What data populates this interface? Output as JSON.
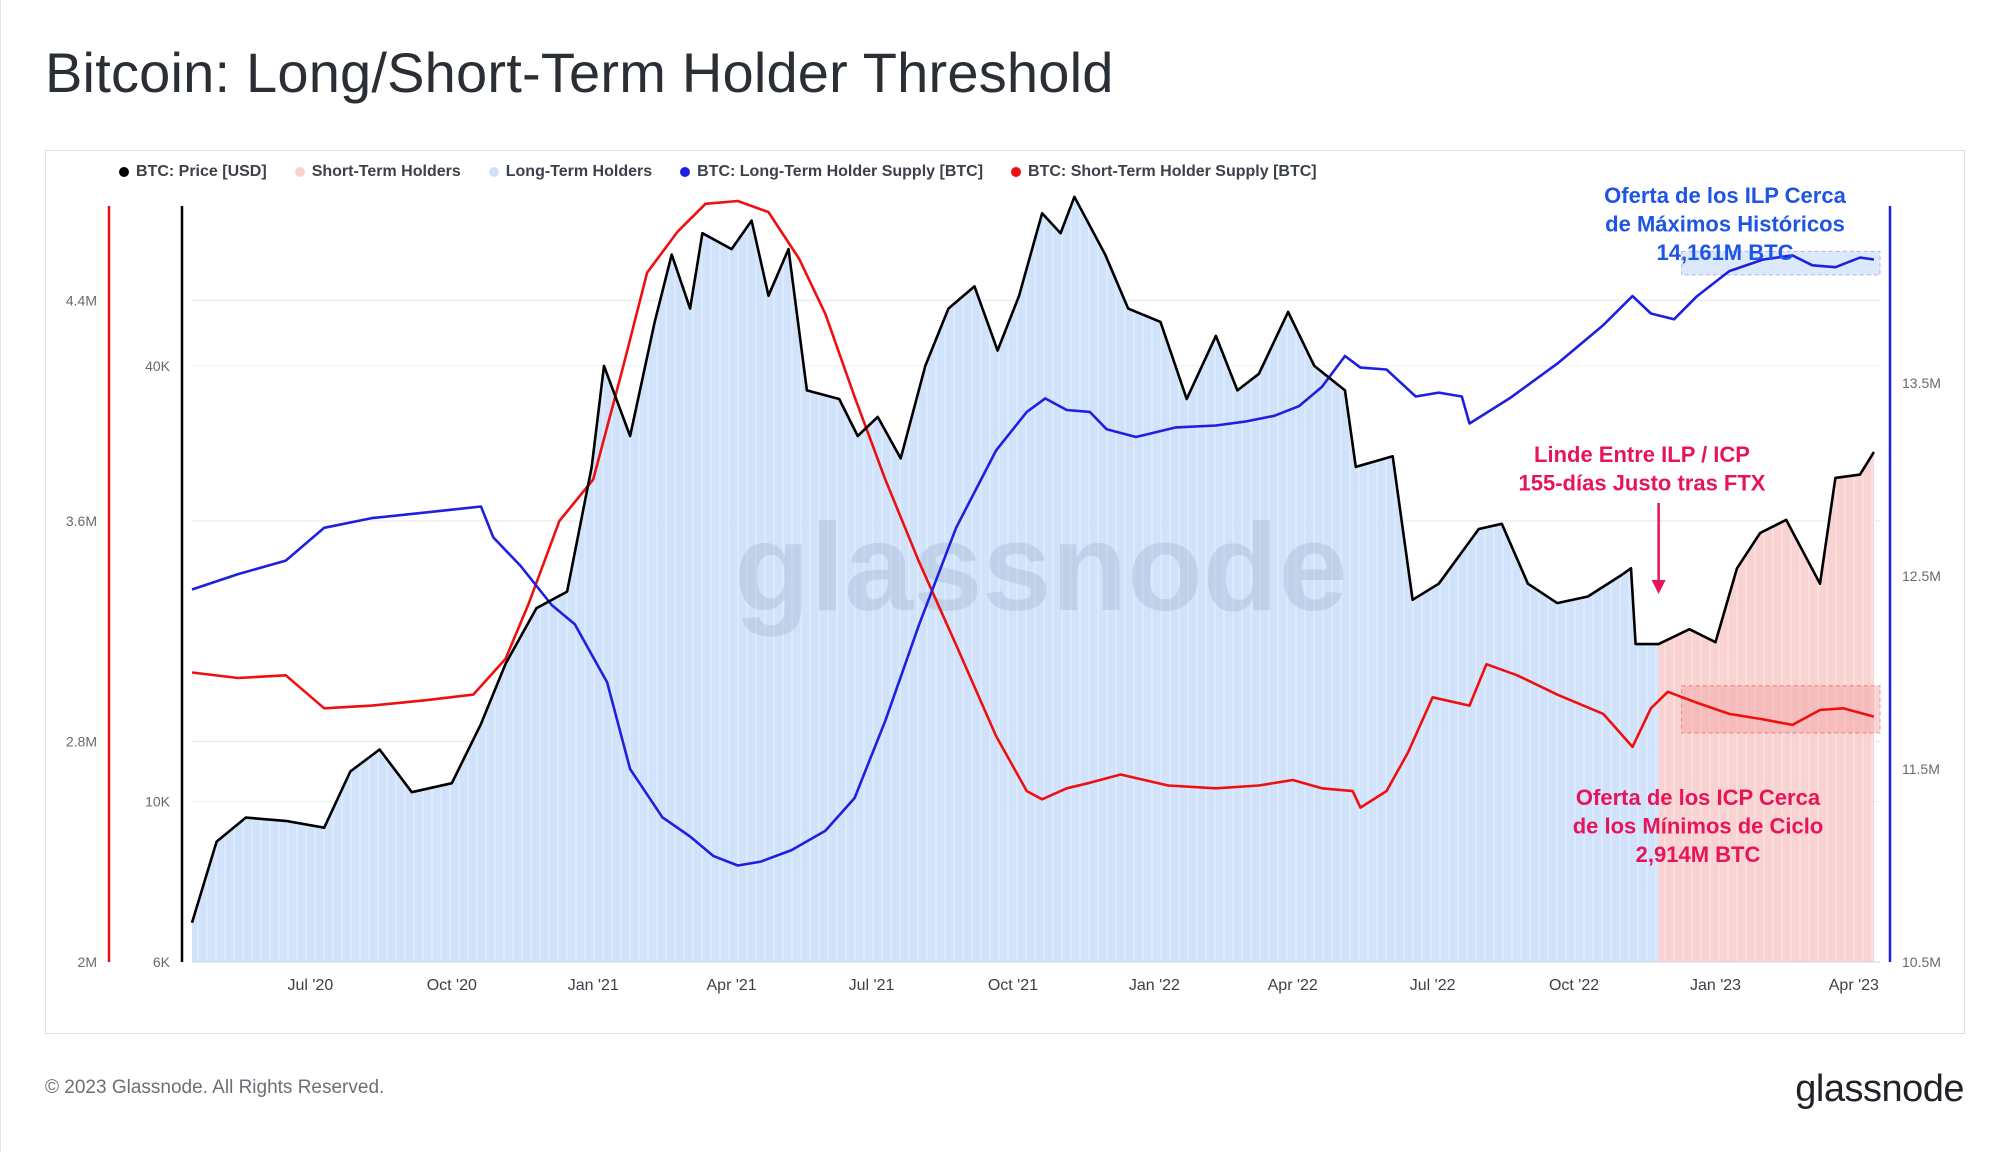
{
  "title": "Bitcoin: Long/Short-Term Holder Threshold",
  "footer": "© 2023 Glassnode. All Rights Reserved.",
  "logo": "glassnode",
  "watermark": "glassnode",
  "colors": {
    "price": "#000000",
    "sth_area": "#f9d0d0",
    "lth_area": "#cfe2fb",
    "lth_supply": "#1f1fe0",
    "sth_supply": "#ee1010",
    "annotation_blue": "#1e55e8",
    "annotation_pink": "#e8145a"
  },
  "legend": [
    {
      "label": "BTC: Price [USD]",
      "color": "#000000"
    },
    {
      "label": "Short-Term Holders",
      "color": "#f9d0d0"
    },
    {
      "label": "Long-Term Holders",
      "color": "#cfe2fb"
    },
    {
      "label": "BTC: Long-Term Holder Supply [BTC]",
      "color": "#1f1fe0"
    },
    {
      "label": "BTC: Short-Term Holder Supply [BTC]",
      "color": "#ee1010"
    }
  ],
  "chart_data": {
    "type": "line",
    "x_ticks": [
      "Jul '20",
      "Oct '20",
      "Jan '21",
      "Apr '21",
      "Jul '21",
      "Oct '21",
      "Jan '22",
      "Apr '22",
      "Jul '22",
      "Oct '22",
      "Jan '23",
      "Apr '23"
    ],
    "y_axes": {
      "sth_supply_left": {
        "ticks": [
          "4.4M",
          "3.6M",
          "2.8M",
          "2M"
        ],
        "range": [
          2000000,
          4800000
        ]
      },
      "price_left": {
        "ticks": [
          "40K",
          "10K",
          "6K"
        ],
        "scale": "log",
        "range": [
          6000,
          70000
        ]
      },
      "lth_supply_right": {
        "ticks": [
          "13.5M",
          "12.5M",
          "11.5M",
          "10.5M"
        ],
        "range": [
          10500000,
          14500000
        ]
      }
    },
    "threshold_date": "2022-11-25",
    "series": [
      {
        "name": "BTC: Price [USD]",
        "axis": "price_left",
        "points": [
          [
            "2020-04-15",
            6800
          ],
          [
            "2020-05-01",
            8800
          ],
          [
            "2020-05-20",
            9500
          ],
          [
            "2020-06-15",
            9400
          ],
          [
            "2020-07-10",
            9200
          ],
          [
            "2020-07-27",
            11000
          ],
          [
            "2020-08-15",
            11800
          ],
          [
            "2020-09-05",
            10300
          ],
          [
            "2020-10-01",
            10600
          ],
          [
            "2020-10-20",
            12800
          ],
          [
            "2020-11-05",
            15500
          ],
          [
            "2020-11-25",
            18500
          ],
          [
            "2020-12-15",
            19500
          ],
          [
            "2020-12-31",
            29000
          ],
          [
            "2021-01-08",
            40000
          ],
          [
            "2021-01-25",
            32000
          ],
          [
            "2021-02-10",
            46000
          ],
          [
            "2021-02-21",
            57000
          ],
          [
            "2021-03-05",
            48000
          ],
          [
            "2021-03-13",
            61000
          ],
          [
            "2021-04-01",
            58000
          ],
          [
            "2021-04-14",
            63500
          ],
          [
            "2021-04-25",
            50000
          ],
          [
            "2021-05-08",
            58000
          ],
          [
            "2021-05-20",
            37000
          ],
          [
            "2021-06-10",
            36000
          ],
          [
            "2021-06-22",
            32000
          ],
          [
            "2021-07-05",
            34000
          ],
          [
            "2021-07-20",
            29800
          ],
          [
            "2021-08-05",
            40000
          ],
          [
            "2021-08-20",
            48000
          ],
          [
            "2021-09-06",
            51500
          ],
          [
            "2021-09-21",
            42000
          ],
          [
            "2021-10-05",
            50000
          ],
          [
            "2021-10-20",
            65000
          ],
          [
            "2021-11-01",
            61000
          ],
          [
            "2021-11-10",
            68500
          ],
          [
            "2021-11-30",
            57000
          ],
          [
            "2021-12-15",
            48000
          ],
          [
            "2022-01-05",
            46000
          ],
          [
            "2022-01-22",
            36000
          ],
          [
            "2022-02-10",
            44000
          ],
          [
            "2022-02-24",
            37000
          ],
          [
            "2022-03-10",
            39000
          ],
          [
            "2022-03-29",
            47500
          ],
          [
            "2022-04-15",
            40000
          ],
          [
            "2022-05-05",
            37000
          ],
          [
            "2022-05-12",
            29000
          ],
          [
            "2022-06-05",
            30000
          ],
          [
            "2022-06-18",
            19000
          ],
          [
            "2022-07-05",
            20000
          ],
          [
            "2022-07-31",
            23800
          ],
          [
            "2022-08-15",
            24200
          ],
          [
            "2022-09-01",
            20000
          ],
          [
            "2022-09-20",
            18800
          ],
          [
            "2022-10-10",
            19200
          ],
          [
            "2022-10-31",
            20500
          ],
          [
            "2022-11-07",
            21000
          ],
          [
            "2022-11-10",
            16500
          ],
          [
            "2022-11-25",
            16500
          ],
          [
            "2022-12-15",
            17300
          ],
          [
            "2023-01-01",
            16600
          ],
          [
            "2023-01-15",
            21000
          ],
          [
            "2023-01-30",
            23500
          ],
          [
            "2023-02-16",
            24500
          ],
          [
            "2023-03-10",
            20000
          ],
          [
            "2023-03-20",
            28000
          ],
          [
            "2023-04-05",
            28300
          ],
          [
            "2023-04-14",
            30400
          ]
        ]
      },
      {
        "name": "BTC: Long-Term Holder Supply [BTC]",
        "axis": "lth_supply_right",
        "points": [
          [
            "2020-04-15",
            12430000
          ],
          [
            "2020-05-15",
            12510000
          ],
          [
            "2020-06-15",
            12580000
          ],
          [
            "2020-07-10",
            12750000
          ],
          [
            "2020-08-10",
            12800000
          ],
          [
            "2020-09-15",
            12830000
          ],
          [
            "2020-10-20",
            12860000
          ],
          [
            "2020-10-28",
            12700000
          ],
          [
            "2020-11-15",
            12550000
          ],
          [
            "2020-12-05",
            12350000
          ],
          [
            "2020-12-20",
            12250000
          ],
          [
            "2021-01-10",
            11950000
          ],
          [
            "2021-01-25",
            11500000
          ],
          [
            "2021-02-15",
            11250000
          ],
          [
            "2021-03-05",
            11150000
          ],
          [
            "2021-03-20",
            11050000
          ],
          [
            "2021-04-05",
            11000000
          ],
          [
            "2021-04-20",
            11020000
          ],
          [
            "2021-05-10",
            11080000
          ],
          [
            "2021-06-01",
            11180000
          ],
          [
            "2021-06-20",
            11350000
          ],
          [
            "2021-07-10",
            11750000
          ],
          [
            "2021-08-01",
            12250000
          ],
          [
            "2021-08-25",
            12750000
          ],
          [
            "2021-09-20",
            13150000
          ],
          [
            "2021-10-10",
            13350000
          ],
          [
            "2021-10-22",
            13420000
          ],
          [
            "2021-11-05",
            13360000
          ],
          [
            "2021-11-20",
            13350000
          ],
          [
            "2021-12-01",
            13260000
          ],
          [
            "2021-12-20",
            13220000
          ],
          [
            "2022-01-15",
            13270000
          ],
          [
            "2022-02-10",
            13280000
          ],
          [
            "2022-03-01",
            13300000
          ],
          [
            "2022-03-20",
            13330000
          ],
          [
            "2022-04-05",
            13380000
          ],
          [
            "2022-04-20",
            13480000
          ],
          [
            "2022-05-05",
            13640000
          ],
          [
            "2022-05-15",
            13580000
          ],
          [
            "2022-06-01",
            13570000
          ],
          [
            "2022-06-20",
            13430000
          ],
          [
            "2022-07-05",
            13450000
          ],
          [
            "2022-07-20",
            13430000
          ],
          [
            "2022-07-25",
            13290000
          ],
          [
            "2022-08-20",
            13420000
          ],
          [
            "2022-09-20",
            13600000
          ],
          [
            "2022-10-20",
            13800000
          ],
          [
            "2022-11-08",
            13950000
          ],
          [
            "2022-11-20",
            13860000
          ],
          [
            "2022-12-05",
            13830000
          ],
          [
            "2022-12-20",
            13950000
          ],
          [
            "2023-01-10",
            14080000
          ],
          [
            "2023-02-01",
            14140000
          ],
          [
            "2023-02-20",
            14161000
          ],
          [
            "2023-03-05",
            14110000
          ],
          [
            "2023-03-20",
            14100000
          ],
          [
            "2023-04-05",
            14150000
          ],
          [
            "2023-04-14",
            14140000
          ]
        ]
      },
      {
        "name": "BTC: Short-Term Holder Supply [BTC]",
        "axis": "sth_supply_left",
        "points": [
          [
            "2020-04-15",
            3050000
          ],
          [
            "2020-05-15",
            3030000
          ],
          [
            "2020-06-15",
            3040000
          ],
          [
            "2020-07-10",
            2920000
          ],
          [
            "2020-08-10",
            2930000
          ],
          [
            "2020-09-15",
            2950000
          ],
          [
            "2020-10-15",
            2970000
          ],
          [
            "2020-11-05",
            3100000
          ],
          [
            "2020-11-20",
            3300000
          ],
          [
            "2020-12-10",
            3600000
          ],
          [
            "2021-01-01",
            3750000
          ],
          [
            "2021-01-20",
            4150000
          ],
          [
            "2021-02-05",
            4500000
          ],
          [
            "2021-02-25",
            4650000
          ],
          [
            "2021-03-15",
            4750000
          ],
          [
            "2021-04-05",
            4760000
          ],
          [
            "2021-04-25",
            4720000
          ],
          [
            "2021-05-15",
            4550000
          ],
          [
            "2021-06-01",
            4350000
          ],
          [
            "2021-06-20",
            4050000
          ],
          [
            "2021-07-10",
            3750000
          ],
          [
            "2021-08-01",
            3450000
          ],
          [
            "2021-08-25",
            3150000
          ],
          [
            "2021-09-20",
            2820000
          ],
          [
            "2021-10-10",
            2620000
          ],
          [
            "2021-10-20",
            2590000
          ],
          [
            "2021-11-05",
            2630000
          ],
          [
            "2021-11-20",
            2650000
          ],
          [
            "2021-12-10",
            2680000
          ],
          [
            "2022-01-10",
            2640000
          ],
          [
            "2022-02-10",
            2630000
          ],
          [
            "2022-03-10",
            2640000
          ],
          [
            "2022-04-01",
            2660000
          ],
          [
            "2022-04-20",
            2630000
          ],
          [
            "2022-05-10",
            2620000
          ],
          [
            "2022-05-15",
            2560000
          ],
          [
            "2022-06-01",
            2620000
          ],
          [
            "2022-06-15",
            2760000
          ],
          [
            "2022-07-01",
            2960000
          ],
          [
            "2022-07-25",
            2930000
          ],
          [
            "2022-08-05",
            3080000
          ],
          [
            "2022-08-25",
            3040000
          ],
          [
            "2022-09-20",
            2970000
          ],
          [
            "2022-10-20",
            2900000
          ],
          [
            "2022-11-08",
            2780000
          ],
          [
            "2022-11-20",
            2920000
          ],
          [
            "2022-12-01",
            2980000
          ],
          [
            "2022-12-20",
            2940000
          ],
          [
            "2023-01-10",
            2900000
          ],
          [
            "2023-02-01",
            2880000
          ],
          [
            "2023-02-20",
            2860000
          ],
          [
            "2023-03-10",
            2914000
          ],
          [
            "2023-03-25",
            2920000
          ],
          [
            "2023-04-14",
            2890000
          ]
        ]
      },
      {
        "name": "Long-Term Holders",
        "type": "area",
        "range": [
          "2020-04-15",
          "2022-11-25"
        ]
      },
      {
        "name": "Short-Term Holders",
        "type": "area",
        "range": [
          "2022-11-25",
          "2023-04-14"
        ]
      }
    ]
  },
  "annotations": {
    "lth": {
      "lines": [
        "Oferta de los ILP Cerca",
        "de Máximos Históricos",
        "14,161M BTC"
      ]
    },
    "threshold": {
      "lines": [
        "Linde Entre ILP / ICP",
        "155-días Justo tras FTX"
      ]
    },
    "sth": {
      "lines": [
        "Oferta de los ICP Cerca",
        "de los Mínimos de Ciclo",
        "2,914M BTC"
      ]
    }
  }
}
